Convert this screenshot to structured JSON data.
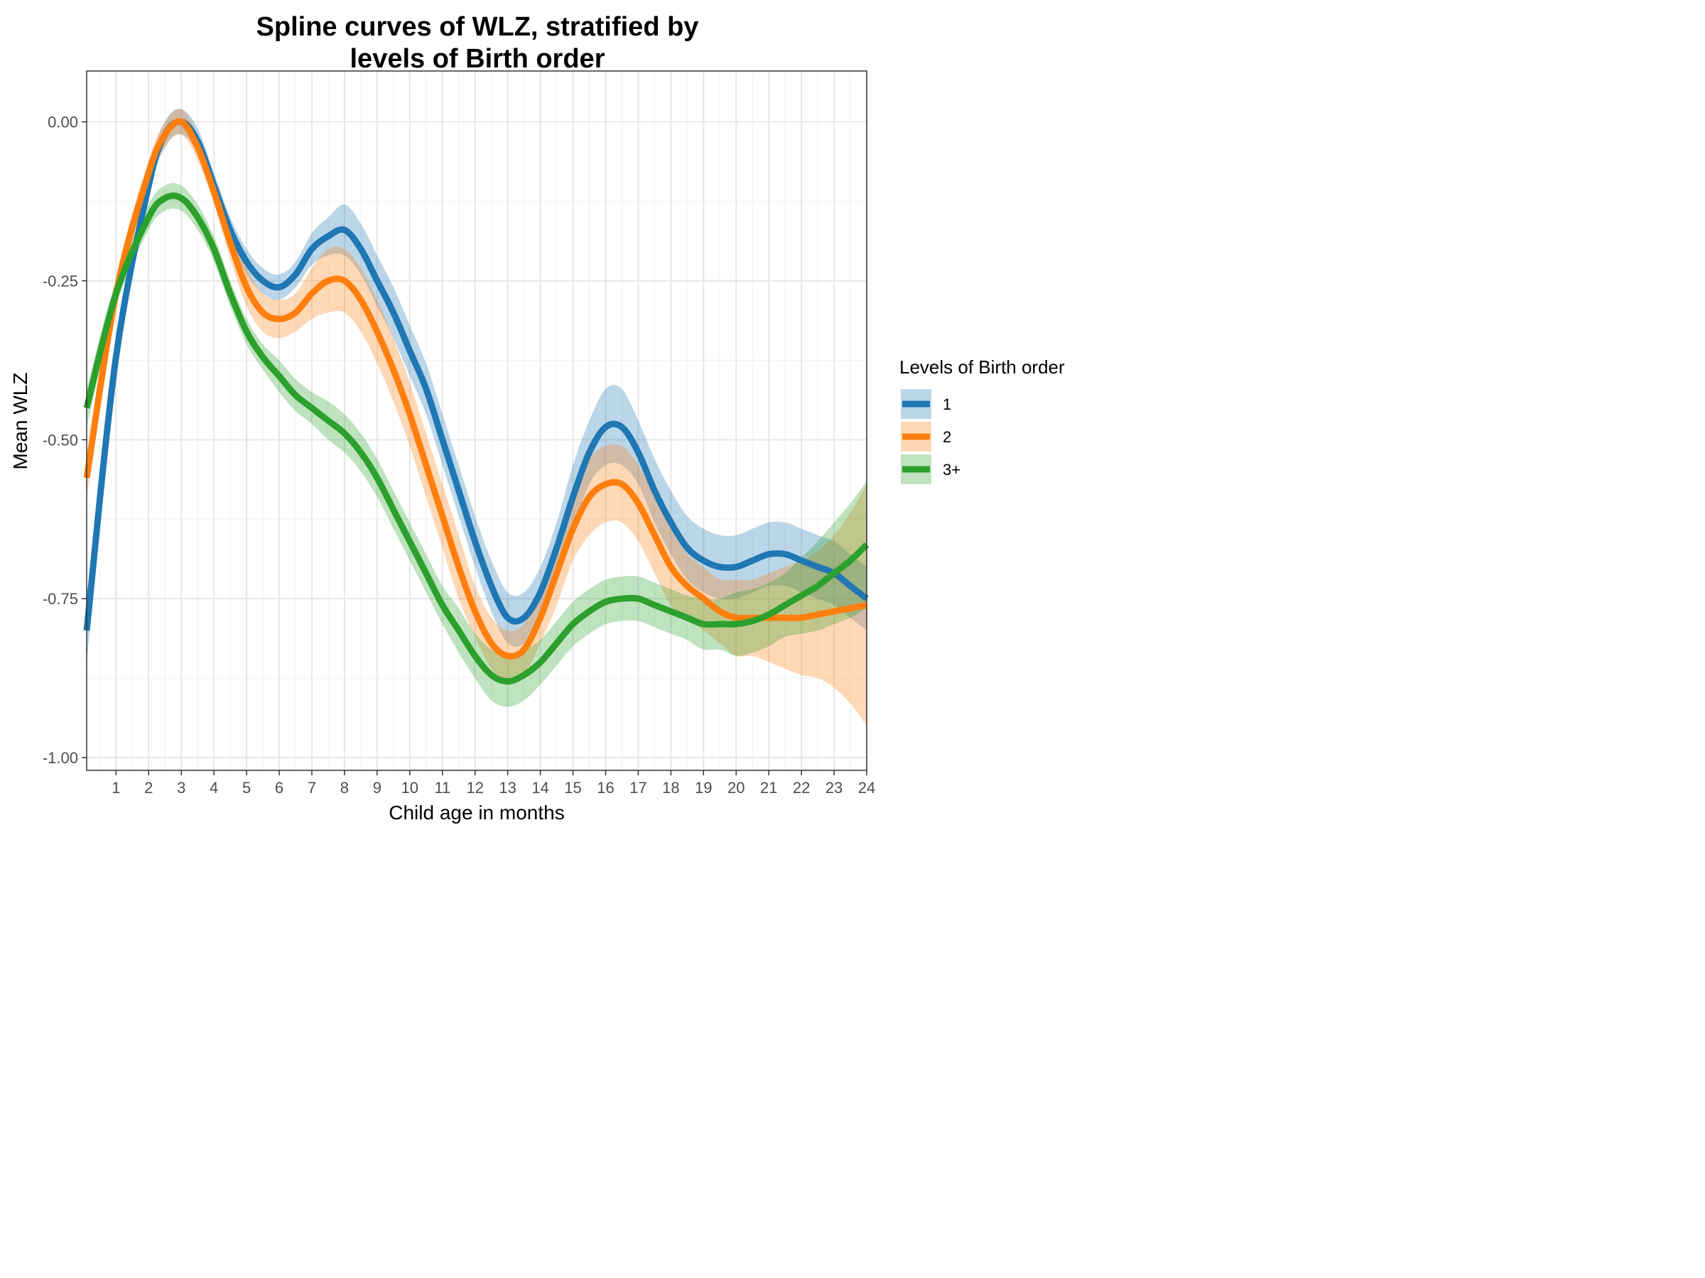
{
  "chart_data": {
    "type": "line",
    "title_lines": [
      "Spline curves of WLZ, stratified by",
      "levels of Birth order"
    ],
    "xlabel": "Child age in months",
    "ylabel": "Mean WLZ",
    "xlim": [
      0.1,
      24
    ],
    "ylim": [
      -1.02,
      0.08
    ],
    "x_ticks": [
      1,
      2,
      3,
      4,
      5,
      6,
      7,
      8,
      9,
      10,
      11,
      12,
      13,
      14,
      15,
      16,
      17,
      18,
      19,
      20,
      21,
      22,
      23,
      24
    ],
    "x_tick_labels": [
      "1",
      "2",
      "3",
      "4",
      "5",
      "6",
      "7",
      "8",
      "9",
      "10",
      "11",
      "12",
      "13",
      "14",
      "15",
      "16",
      "17",
      "18",
      "19",
      "20",
      "21",
      "22",
      "23",
      "24"
    ],
    "y_ticks": [
      0.0,
      -0.25,
      -0.5,
      -0.75,
      -1.0
    ],
    "y_tick_labels": [
      "0.00",
      "-0.25",
      "-0.50",
      "-0.75",
      "-1.00"
    ],
    "grid": true,
    "legend_title": "Levels of Birth order",
    "legend_position": "right",
    "series": [
      {
        "name": "1",
        "color": "#1f77b4",
        "x": [
          0.1,
          1,
          2,
          2.5,
          3,
          3.5,
          4,
          4.5,
          5,
          5.5,
          6,
          6.5,
          7,
          7.5,
          8,
          8.5,
          9,
          9.5,
          10,
          10.5,
          11,
          11.5,
          12,
          12.5,
          13,
          13.5,
          14,
          14.5,
          15,
          15.5,
          16,
          16.5,
          17,
          17.5,
          18,
          18.5,
          19,
          19.5,
          20,
          20.5,
          21,
          21.5,
          22,
          22.5,
          23,
          23.5,
          24
        ],
        "y": [
          -0.8,
          -0.37,
          -0.1,
          -0.02,
          0.0,
          -0.03,
          -0.1,
          -0.17,
          -0.22,
          -0.25,
          -0.26,
          -0.24,
          -0.2,
          -0.18,
          -0.17,
          -0.2,
          -0.25,
          -0.3,
          -0.36,
          -0.42,
          -0.5,
          -0.58,
          -0.66,
          -0.73,
          -0.78,
          -0.78,
          -0.74,
          -0.67,
          -0.59,
          -0.52,
          -0.48,
          -0.48,
          -0.52,
          -0.58,
          -0.63,
          -0.67,
          -0.69,
          -0.7,
          -0.7,
          -0.69,
          -0.68,
          -0.68,
          -0.69,
          -0.7,
          -0.71,
          -0.73,
          -0.75
        ],
        "band_halfwidth": [
          0.05,
          0.03,
          0.02,
          0.02,
          0.02,
          0.02,
          0.02,
          0.02,
          0.02,
          0.02,
          0.02,
          0.02,
          0.025,
          0.03,
          0.04,
          0.04,
          0.04,
          0.04,
          0.04,
          0.04,
          0.04,
          0.04,
          0.04,
          0.04,
          0.04,
          0.04,
          0.04,
          0.04,
          0.05,
          0.05,
          0.06,
          0.06,
          0.05,
          0.05,
          0.05,
          0.05,
          0.05,
          0.05,
          0.05,
          0.05,
          0.05,
          0.05,
          0.05,
          0.05,
          0.05,
          0.05,
          0.05
        ]
      },
      {
        "name": "2",
        "color": "#ff7f0e",
        "x": [
          0.1,
          1,
          2,
          2.5,
          3,
          3.5,
          4,
          4.5,
          5,
          5.5,
          6,
          6.5,
          7,
          7.5,
          8,
          8.5,
          9,
          9.5,
          10,
          10.5,
          11,
          11.5,
          12,
          12.5,
          13,
          13.5,
          14,
          14.5,
          15,
          15.5,
          16,
          16.5,
          17,
          17.5,
          18,
          18.5,
          19,
          19.5,
          20,
          20.5,
          21,
          21.5,
          22,
          22.5,
          23,
          23.5,
          24
        ],
        "y": [
          -0.56,
          -0.27,
          -0.08,
          -0.02,
          0.0,
          -0.04,
          -0.11,
          -0.19,
          -0.26,
          -0.3,
          -0.31,
          -0.3,
          -0.27,
          -0.25,
          -0.25,
          -0.28,
          -0.33,
          -0.39,
          -0.46,
          -0.54,
          -0.62,
          -0.7,
          -0.77,
          -0.82,
          -0.84,
          -0.83,
          -0.78,
          -0.71,
          -0.64,
          -0.59,
          -0.57,
          -0.57,
          -0.6,
          -0.65,
          -0.7,
          -0.73,
          -0.75,
          -0.77,
          -0.78,
          -0.78,
          -0.78,
          -0.78,
          -0.78,
          -0.775,
          -0.77,
          -0.765,
          -0.76
        ],
        "band_halfwidth": [
          0.03,
          0.025,
          0.02,
          0.02,
          0.02,
          0.02,
          0.02,
          0.025,
          0.03,
          0.03,
          0.03,
          0.03,
          0.04,
          0.05,
          0.05,
          0.05,
          0.05,
          0.05,
          0.05,
          0.05,
          0.05,
          0.05,
          0.04,
          0.04,
          0.04,
          0.04,
          0.04,
          0.05,
          0.05,
          0.06,
          0.06,
          0.06,
          0.06,
          0.06,
          0.06,
          0.05,
          0.05,
          0.05,
          0.06,
          0.06,
          0.07,
          0.08,
          0.09,
          0.1,
          0.12,
          0.15,
          0.19
        ]
      },
      {
        "name": "3+",
        "color": "#2ca02c",
        "x": [
          0.1,
          1,
          2,
          2.5,
          3,
          3.5,
          4,
          4.5,
          5,
          5.5,
          6,
          6.5,
          7,
          7.5,
          8,
          8.5,
          9,
          9.5,
          10,
          10.5,
          11,
          11.5,
          12,
          12.5,
          13,
          13.5,
          14,
          14.5,
          15,
          15.5,
          16,
          16.5,
          17,
          17.5,
          18,
          18.5,
          19,
          19.5,
          20,
          20.5,
          21,
          21.5,
          22,
          22.5,
          23,
          23.5,
          24
        ],
        "y": [
          -0.45,
          -0.27,
          -0.15,
          -0.12,
          -0.12,
          -0.15,
          -0.2,
          -0.27,
          -0.33,
          -0.37,
          -0.4,
          -0.43,
          -0.45,
          -0.47,
          -0.49,
          -0.52,
          -0.56,
          -0.61,
          -0.66,
          -0.71,
          -0.76,
          -0.8,
          -0.84,
          -0.87,
          -0.88,
          -0.87,
          -0.85,
          -0.82,
          -0.79,
          -0.77,
          -0.755,
          -0.75,
          -0.75,
          -0.76,
          -0.77,
          -0.78,
          -0.79,
          -0.79,
          -0.79,
          -0.785,
          -0.775,
          -0.76,
          -0.745,
          -0.73,
          -0.71,
          -0.69,
          -0.665
        ],
        "band_halfwidth": [
          0.03,
          0.02,
          0.02,
          0.02,
          0.02,
          0.02,
          0.02,
          0.02,
          0.02,
          0.02,
          0.025,
          0.025,
          0.025,
          0.03,
          0.03,
          0.03,
          0.03,
          0.03,
          0.03,
          0.03,
          0.03,
          0.035,
          0.035,
          0.04,
          0.04,
          0.04,
          0.035,
          0.035,
          0.035,
          0.035,
          0.035,
          0.035,
          0.035,
          0.035,
          0.035,
          0.035,
          0.04,
          0.04,
          0.05,
          0.05,
          0.05,
          0.05,
          0.06,
          0.07,
          0.08,
          0.09,
          0.1
        ]
      }
    ]
  }
}
